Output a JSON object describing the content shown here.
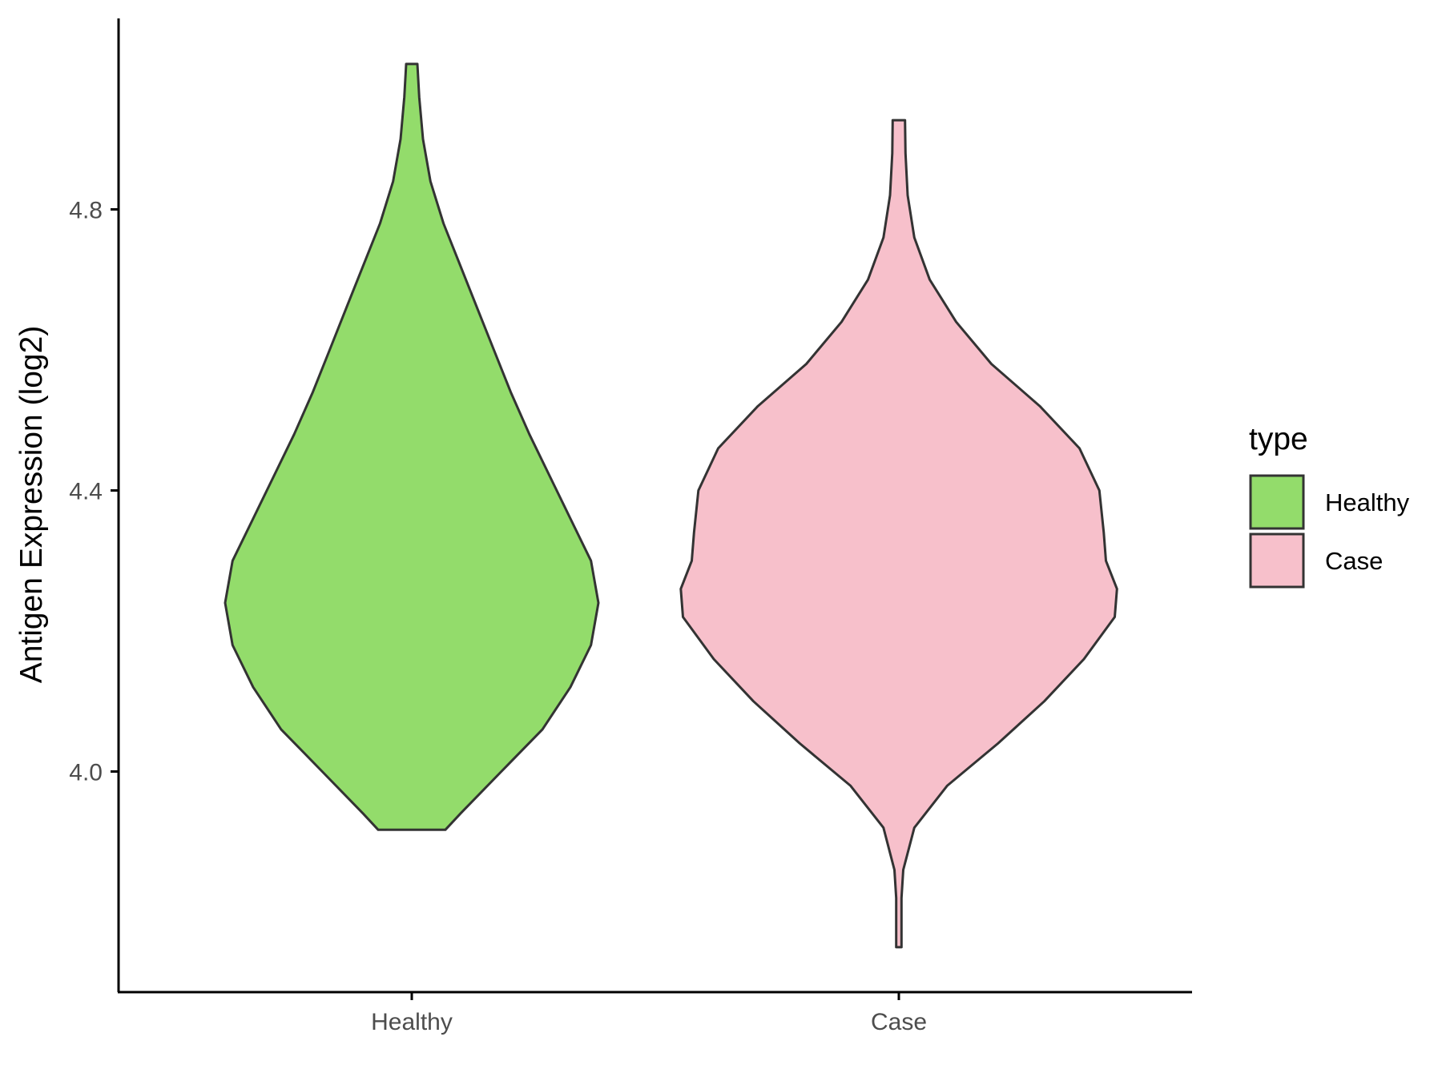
{
  "chart_data": {
    "type": "violin",
    "xlabel": "",
    "ylabel": "Antigen Expression (log2)",
    "categories": [
      "Healthy",
      "Case"
    ],
    "yticks": [
      4.0,
      4.4,
      4.8
    ],
    "ytick_labels": [
      "4.0",
      "4.4",
      "4.8"
    ],
    "ylim": [
      3.69,
      5.07
    ],
    "grid": false,
    "legend": {
      "title": "type",
      "placement": "right",
      "entries": [
        {
          "label": "Healthy",
          "color": "#93dc6b"
        },
        {
          "label": "Case",
          "color": "#f7c0cb"
        }
      ]
    },
    "series": [
      {
        "name": "Healthy",
        "color": "#93dc6b",
        "density": [
          {
            "y": 3.917,
            "w": 0.18
          },
          {
            "y": 3.94,
            "w": 0.26
          },
          {
            "y": 4.0,
            "w": 0.48
          },
          {
            "y": 4.06,
            "w": 0.7
          },
          {
            "y": 4.12,
            "w": 0.85
          },
          {
            "y": 4.18,
            "w": 0.96
          },
          {
            "y": 4.24,
            "w": 1.0
          },
          {
            "y": 4.3,
            "w": 0.96
          },
          {
            "y": 4.36,
            "w": 0.85
          },
          {
            "y": 4.42,
            "w": 0.74
          },
          {
            "y": 4.48,
            "w": 0.63
          },
          {
            "y": 4.54,
            "w": 0.53
          },
          {
            "y": 4.6,
            "w": 0.44
          },
          {
            "y": 4.66,
            "w": 0.35
          },
          {
            "y": 4.72,
            "w": 0.26
          },
          {
            "y": 4.78,
            "w": 0.17
          },
          {
            "y": 4.84,
            "w": 0.1
          },
          {
            "y": 4.9,
            "w": 0.06
          },
          {
            "y": 4.96,
            "w": 0.04
          },
          {
            "y": 5.007,
            "w": 0.03
          }
        ]
      },
      {
        "name": "Case",
        "color": "#f7c0cb",
        "density": [
          {
            "y": 3.75,
            "w": 0.012
          },
          {
            "y": 3.82,
            "w": 0.012
          },
          {
            "y": 3.86,
            "w": 0.02
          },
          {
            "y": 3.92,
            "w": 0.07
          },
          {
            "y": 3.98,
            "w": 0.22
          },
          {
            "y": 4.04,
            "w": 0.45
          },
          {
            "y": 4.1,
            "w": 0.66
          },
          {
            "y": 4.16,
            "w": 0.84
          },
          {
            "y": 4.22,
            "w": 0.98
          },
          {
            "y": 4.26,
            "w": 0.99
          },
          {
            "y": 4.3,
            "w": 0.94
          },
          {
            "y": 4.34,
            "w": 0.93
          },
          {
            "y": 4.4,
            "w": 0.91
          },
          {
            "y": 4.46,
            "w": 0.82
          },
          {
            "y": 4.52,
            "w": 0.64
          },
          {
            "y": 4.58,
            "w": 0.42
          },
          {
            "y": 4.64,
            "w": 0.26
          },
          {
            "y": 4.7,
            "w": 0.14
          },
          {
            "y": 4.76,
            "w": 0.07
          },
          {
            "y": 4.82,
            "w": 0.04
          },
          {
            "y": 4.88,
            "w": 0.03
          },
          {
            "y": 4.927,
            "w": 0.028
          }
        ]
      }
    ]
  }
}
